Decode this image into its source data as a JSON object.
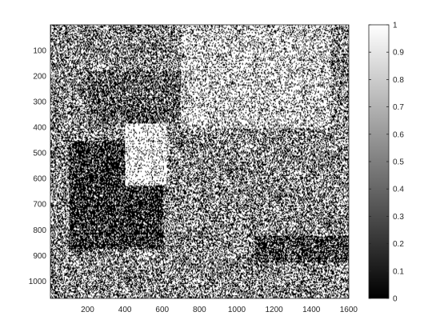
{
  "chart_data": {
    "type": "heatmap",
    "title": "",
    "xlabel": "",
    "ylabel": "",
    "colormap": "gray",
    "image_size": {
      "width": 1600,
      "height": 1067
    },
    "xlim": [
      0.5,
      1600.5
    ],
    "ylim": [
      0.5,
      1067.5
    ],
    "y_direction": "reverse",
    "x_ticks": [
      200,
      400,
      600,
      800,
      1000,
      1200,
      1400,
      1600
    ],
    "x_tick_labels": [
      "200",
      "400",
      "600",
      "800",
      "1000",
      "1200",
      "1400",
      "1600"
    ],
    "y_ticks": [
      100,
      200,
      300,
      400,
      500,
      600,
      700,
      800,
      900,
      1000
    ],
    "y_tick_labels": [
      "100",
      "200",
      "300",
      "400",
      "500",
      "600",
      "700",
      "800",
      "900",
      "1000"
    ],
    "colorbar": {
      "range": [
        0,
        1
      ],
      "ticks": [
        0,
        0.1,
        0.2,
        0.3,
        0.4,
        0.5,
        0.6,
        0.7,
        0.8,
        0.9,
        1
      ],
      "tick_labels": [
        "0",
        "0.1",
        "0.2",
        "0.3",
        "0.4",
        "0.5",
        "0.6",
        "0.7",
        "0.8",
        "0.9",
        "1"
      ],
      "position": "right"
    },
    "binary_values": [
      0,
      1
    ],
    "regions": [
      {
        "description": "dark cat shape",
        "x": [
          100,
          600
        ],
        "y": [
          450,
          870
        ],
        "mean_value": 0.2
      },
      {
        "description": "bright cat face",
        "x": [
          400,
          620
        ],
        "y": [
          380,
          620
        ],
        "mean_value": 0.8
      },
      {
        "description": "cat ears",
        "x": [
          200,
          700
        ],
        "y": [
          180,
          380
        ],
        "mean_value": 0.35
      },
      {
        "description": "dark lower band",
        "x": [
          1100,
          1600
        ],
        "y": [
          820,
          920
        ],
        "mean_value": 0.25
      },
      {
        "description": "bright upper right",
        "x": [
          700,
          1500
        ],
        "y": [
          0,
          400
        ],
        "mean_value": 0.7
      }
    ],
    "background_mean_value": 0.5
  }
}
